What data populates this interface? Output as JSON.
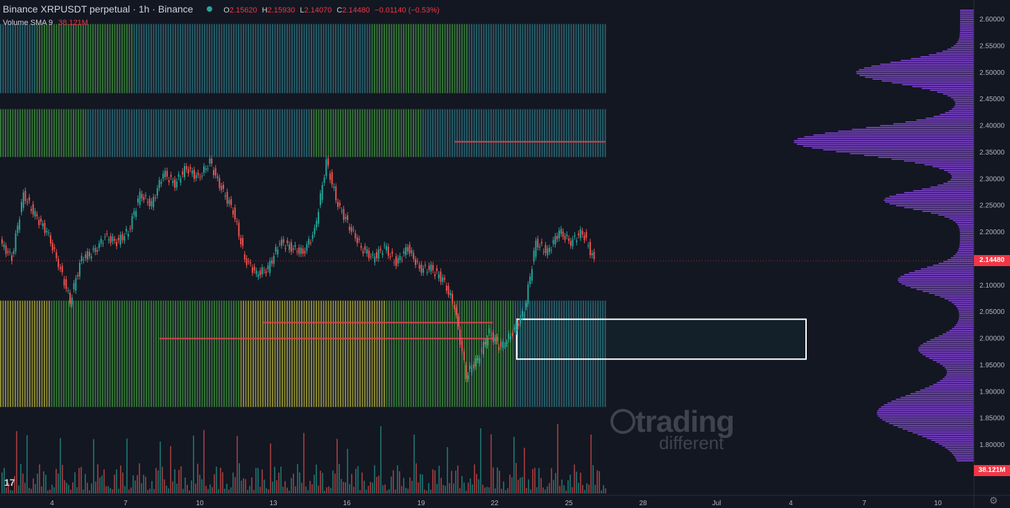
{
  "header": {
    "title": "Binance XRPUSDT perpetual · 1h · Binance",
    "o_label": "O",
    "o_value": "2.15620",
    "h_label": "H",
    "h_value": "2.15930",
    "l_label": "L",
    "l_value": "2.14070",
    "c_label": "C",
    "c_value": "2.14480",
    "change": "−0.01140 (−0.53%)",
    "volume_label": "Volume SMA 9",
    "volume_value": "38.121M"
  },
  "watermark": {
    "line1": "trading",
    "line2": "different"
  },
  "tv_logo": "17",
  "colors": {
    "background": "#131722",
    "up": "#26a69a",
    "down": "#ef5350",
    "profile": "#9c4dff",
    "current_price_tag": "#f23645",
    "heat_teal": "#2a6f7a",
    "heat_green": "#3d8b3d",
    "heat_yellow": "#a9a53a",
    "heat_red": "#d9434a"
  },
  "chart_data": {
    "type": "candlestick",
    "symbol": "XRPUSDT",
    "interval": "1h",
    "y_axis_ticks": [
      "2.60000",
      "2.55000",
      "2.50000",
      "2.45000",
      "2.40000",
      "2.35000",
      "2.30000",
      "2.25000",
      "2.20000",
      "2.15000",
      "2.10000",
      "2.05000",
      "2.00000",
      "1.95000",
      "1.90000",
      "1.85000",
      "1.80000"
    ],
    "ylim": [
      1.77,
      2.62
    ],
    "x_axis_ticks": [
      "4",
      "7",
      "10",
      "13",
      "16",
      "19",
      "22",
      "25",
      "28",
      "Jul",
      "4",
      "7",
      "10"
    ],
    "current_price": "2.14480",
    "volume_sma_value": "38.121M",
    "price_path": [
      {
        "x": "3",
        "y": 2.18
      },
      {
        "x": "3",
        "y": 2.15
      },
      {
        "x": "4",
        "y": 2.27
      },
      {
        "x": "4",
        "y": 2.23
      },
      {
        "x": "5",
        "y": 2.2
      },
      {
        "x": "5",
        "y": 2.14
      },
      {
        "x": "6",
        "y": 2.07
      },
      {
        "x": "6",
        "y": 2.15
      },
      {
        "x": "7",
        "y": 2.16
      },
      {
        "x": "7",
        "y": 2.19
      },
      {
        "x": "8",
        "y": 2.18
      },
      {
        "x": "8",
        "y": 2.2
      },
      {
        "x": "9",
        "y": 2.27
      },
      {
        "x": "9",
        "y": 2.25
      },
      {
        "x": "10",
        "y": 2.31
      },
      {
        "x": "10",
        "y": 2.29
      },
      {
        "x": "11",
        "y": 2.32
      },
      {
        "x": "11",
        "y": 2.3
      },
      {
        "x": "12",
        "y": 2.33
      },
      {
        "x": "12",
        "y": 2.28
      },
      {
        "x": "13",
        "y": 2.24
      },
      {
        "x": "13",
        "y": 2.15
      },
      {
        "x": "14",
        "y": 2.12
      },
      {
        "x": "14",
        "y": 2.13
      },
      {
        "x": "15",
        "y": 2.18
      },
      {
        "x": "15",
        "y": 2.17
      },
      {
        "x": "16",
        "y": 2.16
      },
      {
        "x": "16",
        "y": 2.2
      },
      {
        "x": "16",
        "y": 2.33
      },
      {
        "x": "17",
        "y": 2.25
      },
      {
        "x": "17",
        "y": 2.21
      },
      {
        "x": "18",
        "y": 2.17
      },
      {
        "x": "18",
        "y": 2.15
      },
      {
        "x": "19",
        "y": 2.17
      },
      {
        "x": "19",
        "y": 2.14
      },
      {
        "x": "20",
        "y": 2.17
      },
      {
        "x": "20",
        "y": 2.13
      },
      {
        "x": "21",
        "y": 2.13
      },
      {
        "x": "21",
        "y": 2.11
      },
      {
        "x": "22",
        "y": 2.06
      },
      {
        "x": "22",
        "y": 1.93
      },
      {
        "x": "22",
        "y": 1.96
      },
      {
        "x": "23",
        "y": 2.01
      },
      {
        "x": "23",
        "y": 1.98
      },
      {
        "x": "23",
        "y": 2.01
      },
      {
        "x": "24",
        "y": 2.05
      },
      {
        "x": "24",
        "y": 2.18
      },
      {
        "x": "24",
        "y": 2.16
      },
      {
        "x": "25",
        "y": 2.2
      },
      {
        "x": "25",
        "y": 2.18
      },
      {
        "x": "26",
        "y": 2.2
      },
      {
        "x": "26",
        "y": 2.1448
      }
    ],
    "highlight_zone": {
      "from_x": "22",
      "to_x": "4 Jul",
      "y_low": 1.96,
      "y_high": 2.035
    },
    "heatmap_bands": [
      {
        "y_low": 2.46,
        "y_high": 2.59,
        "color": "teal/green"
      },
      {
        "y_low": 2.34,
        "y_high": 2.43,
        "color": "teal/green/yellow"
      },
      {
        "y_low": 1.87,
        "y_high": 2.07,
        "color": "yellow/green/red"
      }
    ],
    "volume_profile": "side histogram of volume by price (right side)"
  }
}
